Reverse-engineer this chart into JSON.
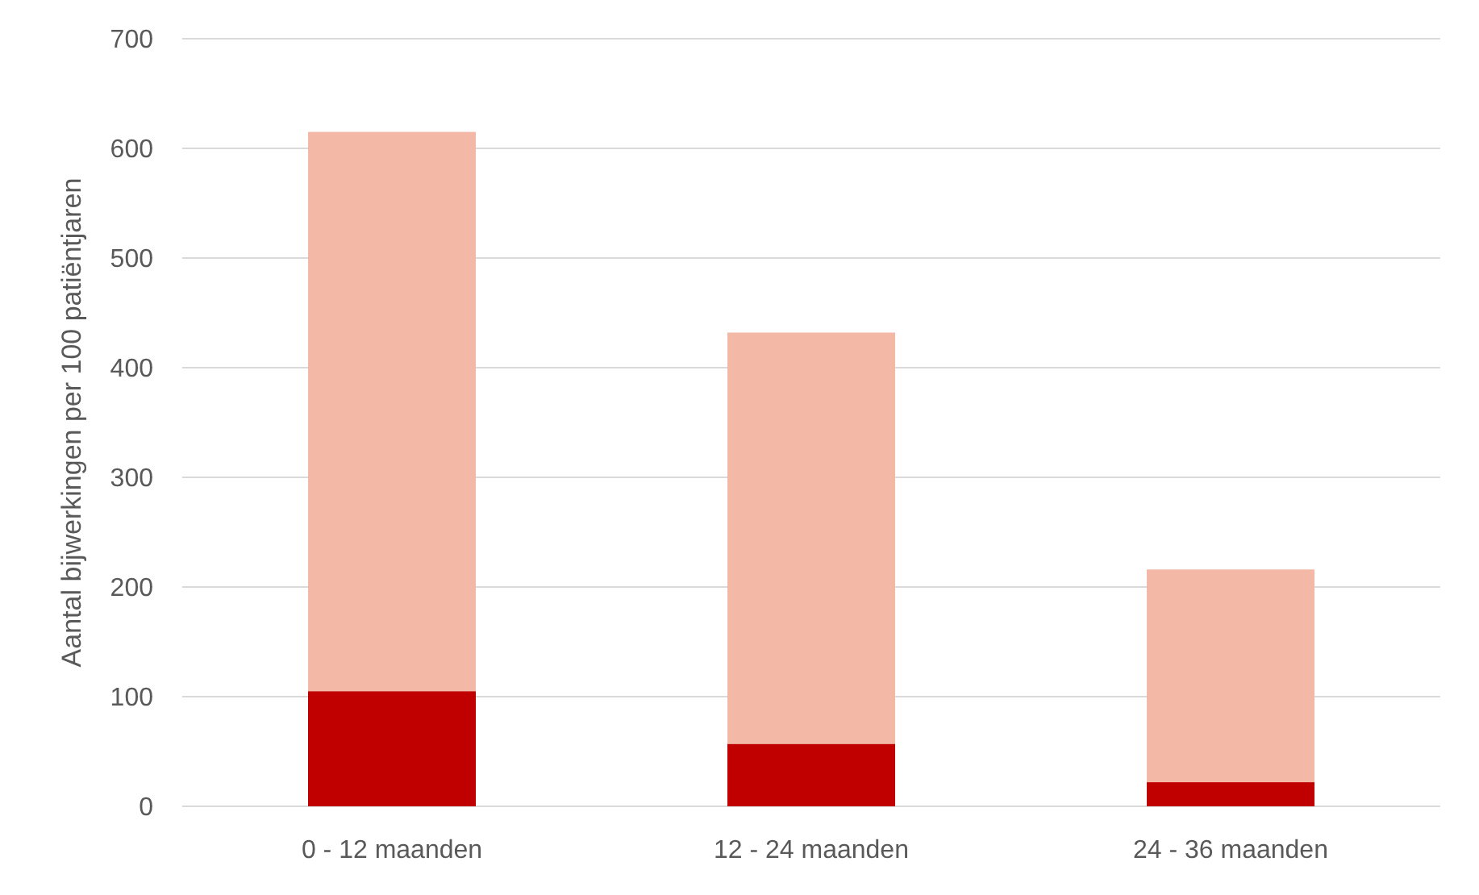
{
  "chart_data": {
    "type": "bar",
    "stacked": true,
    "ylabel": "Aantal bijwerkingen per 100 patiëntjaren",
    "categories": [
      "0 - 12 maanden",
      "12 - 24 maanden",
      "24 - 36 maanden"
    ],
    "series": [
      {
        "color": "#c00000",
        "values": [
          105,
          57,
          22
        ]
      },
      {
        "color": "#f4b9a6",
        "values": [
          510,
          375,
          194
        ]
      }
    ],
    "ylim": [
      0,
      700
    ],
    "yticks": [
      0,
      100,
      200,
      300,
      400,
      500,
      600,
      700
    ],
    "grid": "y"
  }
}
